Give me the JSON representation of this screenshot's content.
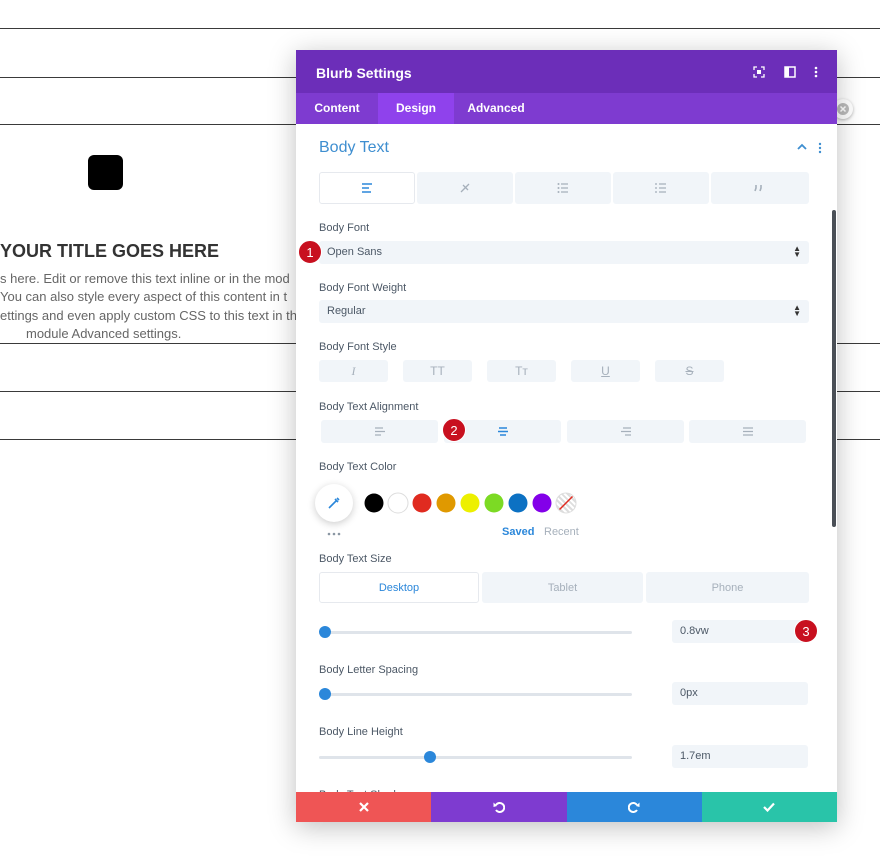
{
  "background": {
    "title": "YOUR TITLE GOES HERE",
    "body_lines": [
      "s here. Edit or remove this text inline or in the mod",
      " You can also style every aspect of this content in t",
      "ettings and even apply custom CSS to this text in th",
      "module Advanced settings."
    ]
  },
  "header": {
    "title": "Blurb Settings"
  },
  "tabs": [
    "Content",
    "Design",
    "Advanced"
  ],
  "active_tab": 1,
  "section": {
    "title": "Body Text"
  },
  "fields": {
    "body_font": {
      "label": "Body Font",
      "value": "Open Sans",
      "badge": "1"
    },
    "body_font_weight": {
      "label": "Body Font Weight",
      "value": "Regular"
    },
    "body_font_style": {
      "label": "Body Font Style",
      "options": [
        "I",
        "TT",
        "Tт",
        "U",
        "S"
      ]
    },
    "body_text_alignment": {
      "label": "Body Text Alignment",
      "badge": "2"
    },
    "body_text_color": {
      "label": "Body Text Color",
      "swatches": [
        "#000000",
        "#ffffff",
        "#e02b20",
        "#e09900",
        "#edf000",
        "#7cda24",
        "#0c71c3",
        "#8300e9"
      ],
      "saved": "Saved",
      "recent": "Recent"
    },
    "body_text_size": {
      "label": "Body Text Size",
      "devices": [
        "Desktop",
        "Tablet",
        "Phone"
      ],
      "value": "0.8vw",
      "badge": "3"
    },
    "body_letter_spacing": {
      "label": "Body Letter Spacing",
      "value": "0px"
    },
    "body_line_height": {
      "label": "Body Line Height",
      "value": "1.7em"
    },
    "body_text_shadow": {
      "label": "Body Text Shadow"
    }
  }
}
